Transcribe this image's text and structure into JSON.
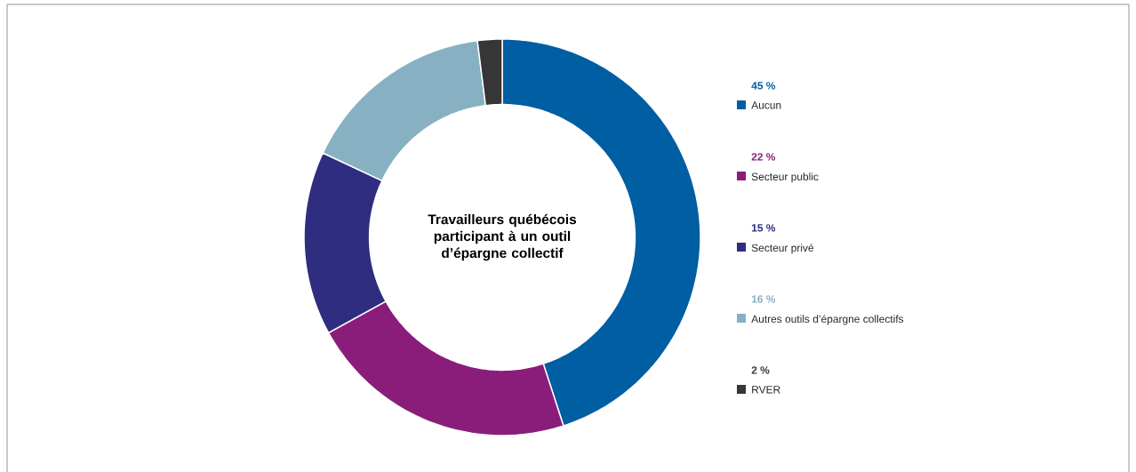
{
  "chart_data": {
    "type": "donut",
    "title": "Travailleurs québécois participant à un outil d’épargne collectif",
    "categories": [
      "Aucun",
      "Secteur public",
      "Secteur privé",
      "Autres outils d’épargne collectifs",
      "RVER"
    ],
    "values": [
      45,
      22,
      15,
      16,
      2
    ],
    "value_labels": [
      "45 %",
      "22 %",
      "15 %",
      "16 %",
      "2 %"
    ],
    "colors": [
      "#005ea3",
      "#8b1d7a",
      "#2e2d80",
      "#87b1c3",
      "#363636"
    ],
    "legend": "right"
  }
}
